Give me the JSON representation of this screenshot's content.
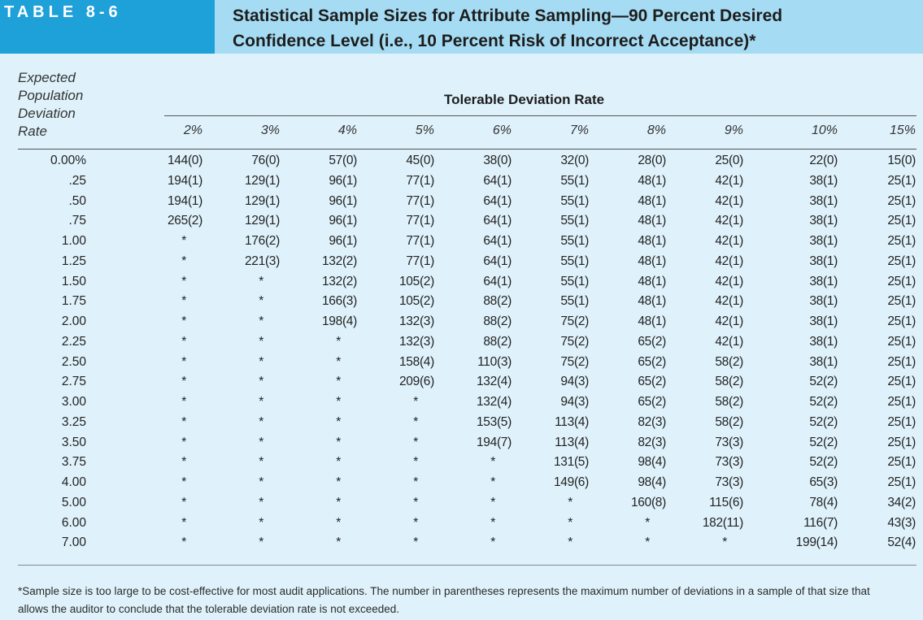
{
  "header": {
    "tag": "TABLE 8-6",
    "title_line1": "Statistical Sample Sizes for Attribute Sampling—90 Percent Desired",
    "title_line2": "Confidence Level (i.e., 10 Percent Risk of Incorrect Acceptance)*"
  },
  "table": {
    "row_header_lines": [
      "Expected",
      "Population",
      "Deviation",
      "Rate"
    ],
    "group_header": "Tolerable Deviation Rate",
    "columns": [
      "2%",
      "3%",
      "4%",
      "5%",
      "6%",
      "7%",
      "8%",
      "9%",
      "10%",
      "15%"
    ],
    "rows": [
      {
        "label": "0.00%",
        "cells": [
          "144(0)",
          "76(0)",
          "57(0)",
          "45(0)",
          "38(0)",
          "32(0)",
          "28(0)",
          "25(0)",
          "22(0)",
          "15(0)"
        ]
      },
      {
        "label": ".25",
        "cells": [
          "194(1)",
          "129(1)",
          "96(1)",
          "77(1)",
          "64(1)",
          "55(1)",
          "48(1)",
          "42(1)",
          "38(1)",
          "25(1)"
        ]
      },
      {
        "label": ".50",
        "cells": [
          "194(1)",
          "129(1)",
          "96(1)",
          "77(1)",
          "64(1)",
          "55(1)",
          "48(1)",
          "42(1)",
          "38(1)",
          "25(1)"
        ]
      },
      {
        "label": ".75",
        "cells": [
          "265(2)",
          "129(1)",
          "96(1)",
          "77(1)",
          "64(1)",
          "55(1)",
          "48(1)",
          "42(1)",
          "38(1)",
          "25(1)"
        ]
      },
      {
        "label": "1.00",
        "cells": [
          "*",
          "176(2)",
          "96(1)",
          "77(1)",
          "64(1)",
          "55(1)",
          "48(1)",
          "42(1)",
          "38(1)",
          "25(1)"
        ]
      },
      {
        "label": "1.25",
        "cells": [
          "*",
          "221(3)",
          "132(2)",
          "77(1)",
          "64(1)",
          "55(1)",
          "48(1)",
          "42(1)",
          "38(1)",
          "25(1)"
        ]
      },
      {
        "label": "1.50",
        "cells": [
          "*",
          "*",
          "132(2)",
          "105(2)",
          "64(1)",
          "55(1)",
          "48(1)",
          "42(1)",
          "38(1)",
          "25(1)"
        ]
      },
      {
        "label": "1.75",
        "cells": [
          "*",
          "*",
          "166(3)",
          "105(2)",
          "88(2)",
          "55(1)",
          "48(1)",
          "42(1)",
          "38(1)",
          "25(1)"
        ]
      },
      {
        "label": "2.00",
        "cells": [
          "*",
          "*",
          "198(4)",
          "132(3)",
          "88(2)",
          "75(2)",
          "48(1)",
          "42(1)",
          "38(1)",
          "25(1)"
        ]
      },
      {
        "label": "2.25",
        "cells": [
          "*",
          "*",
          "*",
          "132(3)",
          "88(2)",
          "75(2)",
          "65(2)",
          "42(1)",
          "38(1)",
          "25(1)"
        ]
      },
      {
        "label": "2.50",
        "cells": [
          "*",
          "*",
          "*",
          "158(4)",
          "110(3)",
          "75(2)",
          "65(2)",
          "58(2)",
          "38(1)",
          "25(1)"
        ]
      },
      {
        "label": "2.75",
        "cells": [
          "*",
          "*",
          "*",
          "209(6)",
          "132(4)",
          "94(3)",
          "65(2)",
          "58(2)",
          "52(2)",
          "25(1)"
        ]
      },
      {
        "label": "3.00",
        "cells": [
          "*",
          "*",
          "*",
          "*",
          "132(4)",
          "94(3)",
          "65(2)",
          "58(2)",
          "52(2)",
          "25(1)"
        ]
      },
      {
        "label": "3.25",
        "cells": [
          "*",
          "*",
          "*",
          "*",
          "153(5)",
          "113(4)",
          "82(3)",
          "58(2)",
          "52(2)",
          "25(1)"
        ]
      },
      {
        "label": "3.50",
        "cells": [
          "*",
          "*",
          "*",
          "*",
          "194(7)",
          "113(4)",
          "82(3)",
          "73(3)",
          "52(2)",
          "25(1)"
        ]
      },
      {
        "label": "3.75",
        "cells": [
          "*",
          "*",
          "*",
          "*",
          "*",
          "131(5)",
          "98(4)",
          "73(3)",
          "52(2)",
          "25(1)"
        ]
      },
      {
        "label": "4.00",
        "cells": [
          "*",
          "*",
          "*",
          "*",
          "*",
          "149(6)",
          "98(4)",
          "73(3)",
          "65(3)",
          "25(1)"
        ]
      },
      {
        "label": "5.00",
        "cells": [
          "*",
          "*",
          "*",
          "*",
          "*",
          "*",
          "160(8)",
          "115(6)",
          "78(4)",
          "34(2)"
        ]
      },
      {
        "label": "6.00",
        "cells": [
          "*",
          "*",
          "*",
          "*",
          "*",
          "*",
          "*",
          "182(11)",
          "116(7)",
          "43(3)"
        ]
      },
      {
        "label": "7.00",
        "cells": [
          "*",
          "*",
          "*",
          "*",
          "*",
          "*",
          "*",
          "*",
          "199(14)",
          "52(4)"
        ]
      }
    ]
  },
  "footnote": {
    "line1": "*Sample size is too large to be cost-effective for most audit applications. The number in parentheses represents the maximum number of deviations in a sample of that size that",
    "line2": "allows the auditor to conclude that the tolerable deviation rate is not exceeded."
  },
  "colors": {
    "page_background": "#dff2fb",
    "header_band": "#a6dcf3",
    "tag_background": "#1ea0d8",
    "tag_text": "#ffffff"
  }
}
